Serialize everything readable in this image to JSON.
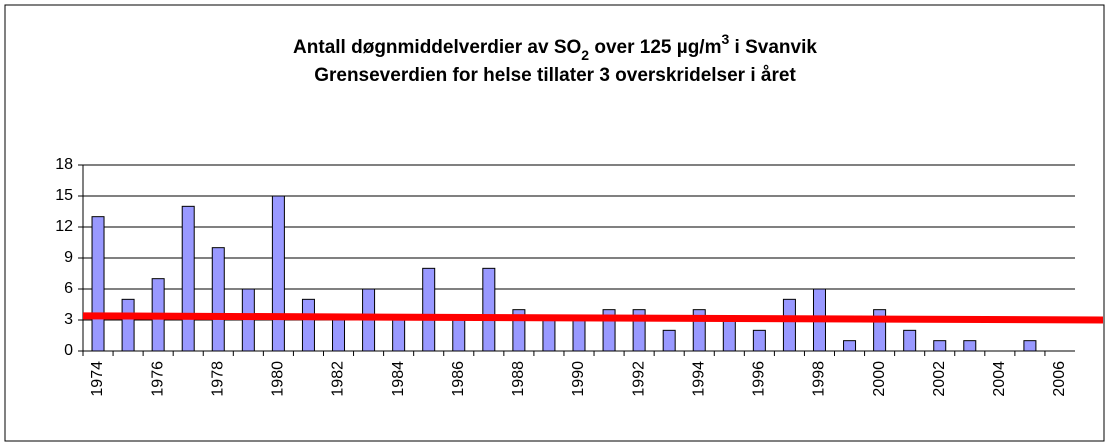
{
  "chart_data": {
    "type": "bar",
    "title": [
      "Antall døgnmiddelverdier av SO",
      "2",
      " over 125 µg/m",
      "3",
      " i Svanvik"
    ],
    "subtitle": "Grenseverdien for helse tillater 3 overskridelser i året",
    "categories": [
      "1974",
      null,
      "1976",
      null,
      "1978",
      null,
      "1980",
      null,
      "1982",
      null,
      "1984",
      null,
      "1986",
      null,
      "1988",
      null,
      "1990",
      null,
      "1992",
      null,
      "1994",
      null,
      "1996",
      null,
      "1998",
      null,
      "2000",
      null,
      "2002",
      null,
      "2004",
      null,
      "2006"
    ],
    "values": [
      13,
      5,
      7,
      14,
      10,
      6,
      15,
      5,
      3,
      6,
      3,
      8,
      3,
      8,
      4,
      3,
      3,
      4,
      4,
      2,
      4,
      3,
      2,
      5,
      6,
      1,
      4,
      2,
      1,
      1,
      0,
      1,
      0
    ],
    "color": "#9999ff",
    "ylim": [
      0,
      18
    ],
    "yticks": [
      0,
      3,
      6,
      9,
      12,
      15,
      18
    ],
    "grid": true,
    "limit_line": {
      "color": "#ff0000",
      "values": [
        3.4,
        3.0
      ]
    }
  }
}
